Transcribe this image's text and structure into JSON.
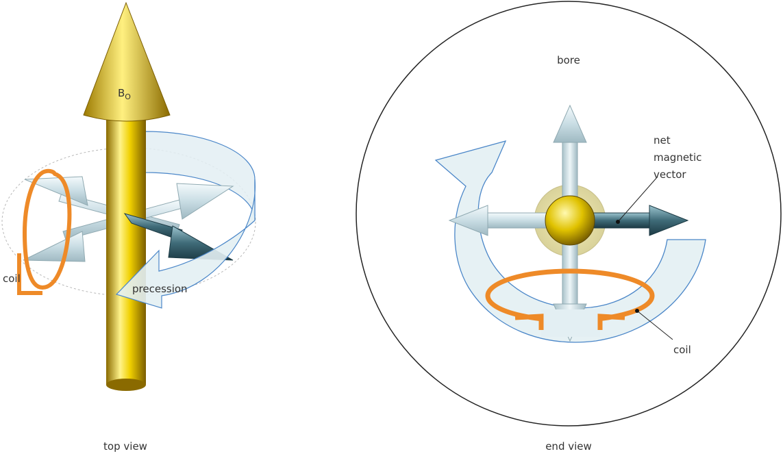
{
  "top_view": {
    "field_label": "B",
    "field_subscript": "O",
    "coil_label": "coil",
    "precession_label": "precession",
    "caption": "top view"
  },
  "end_view": {
    "bore_label": "bore",
    "vector_label": [
      "net",
      "magnetic",
      "vector"
    ],
    "coil_label": "coil",
    "caption": "end view"
  },
  "colors": {
    "field_gold": "#e8c000",
    "vector_light": "#d6e8ee",
    "vector_dark": "#3f6b78",
    "coil_orange": "#ee8a28",
    "precession_blue": "#4a86c8",
    "precession_fill": "#e3eff3",
    "outline": "#222222"
  }
}
